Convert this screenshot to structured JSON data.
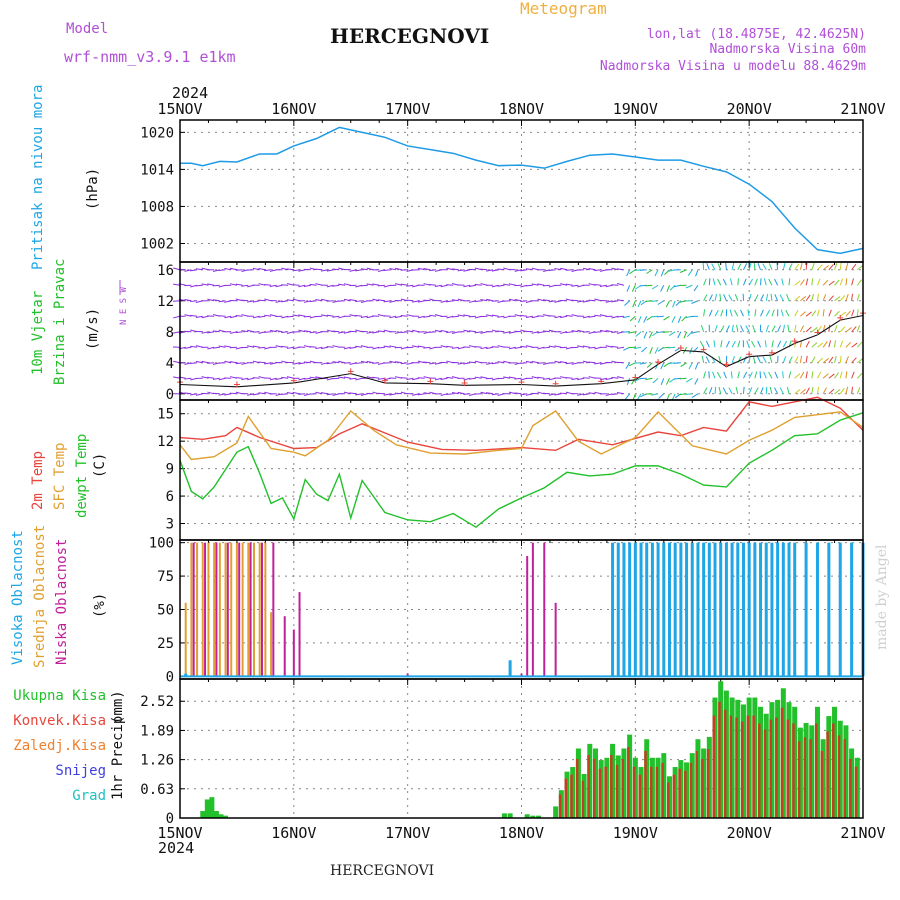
{
  "header": {
    "model_label": "Model",
    "model_value": "wrf-nmm_v3.9.1 e1km",
    "station": "HERCEGNOVI",
    "meteogram": "Meteogram",
    "lonlat": "lon,lat (18.4875E, 42.4625N)",
    "alt": "Nadmorska Visina 60m",
    "alt_model": "Nadmorska Visina u modelu 88.4629m",
    "footer_station": "HERCEGNOVI",
    "credit": "made by Angel"
  },
  "time_axis": {
    "year": "2024",
    "ticks": [
      "15NOV",
      "16NOV",
      "17NOV",
      "18NOV",
      "19NOV",
      "20NOV",
      "21NOV"
    ]
  },
  "colors": {
    "pressure": "#1e9be6",
    "temp2m": "#e8453c",
    "sfc": "#e0a030",
    "dewpt": "#22c02a",
    "cloud_high": "#1ea6e6",
    "cloud_mid": "#e0a030",
    "cloud_low": "#c0209a",
    "precip": "#22c02a",
    "precip_conv": "#c04020",
    "wind_calm": "#8a2be2"
  },
  "chart_data": [
    {
      "type": "line",
      "panel": "pressure",
      "ylabel_main": "Pritisak na nivou mora",
      "ylabel_unit": "(hPa)",
      "ylim": [
        999,
        1022
      ],
      "yticks": [
        1002,
        1008,
        1014,
        1020
      ],
      "grid": true,
      "series": [
        {
          "x": [
            0,
            0.1,
            0.2,
            0.35,
            0.5,
            0.7,
            0.85,
            1.0,
            1.2,
            1.4,
            1.6,
            1.8,
            2.0,
            2.2,
            2.4,
            2.6,
            2.8,
            3.0,
            3.2,
            3.4,
            3.6,
            3.8,
            4.0,
            4.2,
            4.4,
            4.6,
            4.8,
            5.0,
            5.2,
            5.4,
            5.6,
            5.8,
            6.0
          ],
          "values": [
            1015,
            1015,
            1014.6,
            1015.3,
            1015.2,
            1016.5,
            1016.5,
            1017.8,
            1019,
            1020.8,
            1020,
            1019.2,
            1017.8,
            1017.2,
            1016.6,
            1015.5,
            1014.6,
            1014.7,
            1014.2,
            1015.3,
            1016.3,
            1016.5,
            1016,
            1015.5,
            1015.5,
            1014.5,
            1013.6,
            1011.6,
            1008.8,
            1004.5,
            1001,
            1000.4,
            1001.2
          ]
        }
      ]
    },
    {
      "type": "line",
      "panel": "wind",
      "ylabel_main": "10m Vjetar",
      "ylabel_sub": "Brzina i Pravac",
      "ylabel_unit": "(m/s)",
      "compass": "N E S W",
      "ylim": [
        -0.8,
        17
      ],
      "yticks": [
        0,
        4,
        8,
        12,
        16
      ],
      "grid": true,
      "series": [
        {
          "name": "",
          "x": [
            0,
            0.5,
            1.0,
            1.5,
            1.8,
            2.2,
            2.5,
            3.0,
            3.3,
            3.7,
            4.0,
            4.2,
            4.4,
            4.6,
            4.8,
            5.0,
            5.2,
            5.4,
            5.6,
            5.8,
            6.0
          ],
          "values": [
            1.2,
            0.9,
            1.4,
            2.6,
            1.4,
            1.3,
            1.1,
            1.2,
            1.0,
            1.3,
            1.8,
            3.8,
            5.6,
            5.4,
            3.5,
            4.8,
            5.0,
            6.5,
            7.6,
            9.5,
            10.1
          ]
        }
      ]
    },
    {
      "type": "line",
      "panel": "temperature",
      "ylabel_main": "2m Temp",
      "ylabel_sub": "SFC Temp",
      "ylabel_sub2": "dewpt Temp",
      "ylabel_unit": "(C)",
      "ylim": [
        1.2,
        16.5
      ],
      "yticks": [
        3,
        6,
        9,
        12,
        15
      ],
      "grid": true,
      "series": [
        {
          "name": "2m Temp",
          "x": [
            0,
            0.2,
            0.4,
            0.5,
            0.7,
            1.0,
            1.2,
            1.4,
            1.6,
            2.0,
            2.3,
            2.6,
            3.0,
            3.3,
            3.5,
            3.8,
            4.0,
            4.2,
            4.4,
            4.6,
            4.8,
            5.0,
            5.2,
            5.4,
            5.6,
            5.8,
            6.0
          ],
          "values": [
            12.4,
            12.2,
            12.6,
            13.5,
            12.4,
            11.2,
            11.3,
            12.8,
            13.9,
            11.9,
            11.1,
            11.0,
            11.3,
            11.0,
            12.2,
            11.6,
            12.3,
            13.0,
            12.6,
            13.5,
            13.1,
            16.3,
            15.8,
            16.3,
            16.8,
            15.6,
            13.2
          ]
        },
        {
          "name": "SFC Temp",
          "x": [
            0,
            0.1,
            0.3,
            0.5,
            0.6,
            0.8,
            1.0,
            1.1,
            1.3,
            1.5,
            1.7,
            1.9,
            2.2,
            2.5,
            2.8,
            3.0,
            3.1,
            3.3,
            3.5,
            3.7,
            3.9,
            4.0,
            4.2,
            4.5,
            4.8,
            5.0,
            5.2,
            5.4,
            5.6,
            5.8,
            6.0
          ],
          "values": [
            11.6,
            10,
            10.3,
            11.8,
            14.7,
            11.2,
            10.8,
            10.4,
            12.1,
            15.3,
            13.2,
            11.6,
            10.7,
            10.6,
            11.0,
            11.2,
            13.7,
            15.3,
            12.0,
            10.6,
            11.8,
            12.4,
            15.2,
            11.5,
            10.6,
            12.1,
            13.2,
            14.6,
            14.9,
            15.2,
            13.5
          ]
        },
        {
          "name": "dewpt Temp",
          "x": [
            0,
            0.1,
            0.2,
            0.3,
            0.4,
            0.5,
            0.6,
            0.7,
            0.8,
            0.9,
            1.0,
            1.1,
            1.2,
            1.3,
            1.4,
            1.5,
            1.6,
            1.8,
            2.0,
            2.2,
            2.4,
            2.6,
            2.8,
            3.0,
            3.2,
            3.4,
            3.6,
            3.8,
            4.0,
            4.2,
            4.4,
            4.6,
            4.8,
            5.0,
            5.2,
            5.4,
            5.6,
            5.8,
            6.0
          ],
          "values": [
            9.9,
            6.5,
            5.7,
            7.0,
            8.9,
            10.8,
            11.4,
            8.5,
            5.2,
            5.8,
            3.5,
            7.8,
            6.2,
            5.5,
            8.4,
            3.6,
            7.7,
            4.2,
            3.4,
            3.2,
            4.1,
            2.6,
            4.6,
            5.8,
            6.9,
            8.6,
            8.2,
            8.4,
            9.3,
            9.3,
            8.4,
            7.2,
            7.0,
            9.6,
            11.0,
            12.6,
            12.8,
            14.3,
            15.1
          ]
        }
      ]
    },
    {
      "type": "bar",
      "panel": "cloud",
      "ylabel_main": "Visoka Oblacnost",
      "ylabel_sub": "Srednja Oblacnost",
      "ylabel_sub2": "Niska Oblacnost",
      "ylabel_unit": "(%)",
      "ylim": [
        -2,
        102
      ],
      "yticks": [
        0,
        25,
        50,
        75,
        100
      ],
      "grid": true,
      "series": [
        {
          "name": "Srednja Oblacnost",
          "x": [
            0.05,
            0.1,
            0.15,
            0.2,
            0.25,
            0.3,
            0.35,
            0.4,
            0.45,
            0.5,
            0.55,
            0.6,
            0.65,
            0.7,
            0.75,
            0.8,
            5.4,
            5.5,
            5.6,
            5.7,
            5.8,
            5.9
          ],
          "values": [
            55,
            100,
            100,
            100,
            100,
            100,
            100,
            100,
            100,
            100,
            100,
            100,
            100,
            100,
            100,
            48,
            100,
            100,
            100,
            100,
            100,
            100
          ]
        },
        {
          "name": "Niska Oblacnost",
          "x": [
            0.12,
            0.22,
            0.32,
            0.42,
            0.52,
            0.62,
            0.72,
            0.82,
            0.92,
            1.0,
            1.05,
            2.0,
            3.0,
            3.05,
            3.1,
            3.2,
            3.3,
            4.6,
            4.7,
            4.8,
            4.9,
            5.0,
            5.1,
            5.2,
            5.3
          ],
          "values": [
            100,
            100,
            100,
            100,
            100,
            100,
            100,
            100,
            45,
            35,
            63,
            2,
            2,
            90,
            100,
            100,
            55,
            80,
            90,
            85,
            100,
            83,
            80,
            85,
            90
          ]
        },
        {
          "name": "Visoka Oblacnost",
          "x": [
            0.05,
            2.9,
            3.8,
            3.85,
            3.9,
            3.95,
            4.0,
            4.05,
            4.1,
            4.15,
            4.2,
            4.25,
            4.3,
            4.35,
            4.4,
            4.45,
            4.5,
            4.55,
            4.6,
            4.65,
            4.7,
            4.75,
            4.8,
            4.85,
            4.9,
            4.95,
            5.0,
            5.05,
            5.1,
            5.15,
            5.2,
            5.25,
            5.3,
            5.35,
            5.4,
            5.5,
            5.6,
            5.7,
            5.8,
            5.9,
            6.0
          ],
          "values": [
            2,
            12,
            100,
            100,
            100,
            100,
            100,
            100,
            100,
            100,
            100,
            100,
            100,
            100,
            100,
            100,
            100,
            100,
            100,
            100,
            100,
            100,
            100,
            100,
            100,
            100,
            100,
            100,
            100,
            100,
            100,
            100,
            100,
            100,
            100,
            100,
            100,
            100,
            100,
            100,
            100
          ]
        }
      ]
    },
    {
      "type": "bar",
      "panel": "precip",
      "ylabel_main": "1hr Precip",
      "ylabel_unit": "(mm)",
      "legend": [
        "Ukupna Kisa",
        "Konvek.Kisa",
        "Zaledj.Kisa",
        "Snijeg",
        "Grad"
      ],
      "ylim": [
        0,
        3.0
      ],
      "yticks": [
        0,
        0.63,
        1.26,
        1.89,
        2.52
      ],
      "grid": true,
      "series": [
        {
          "name": "Ukupna Kisa",
          "x": [
            0.2,
            0.24,
            0.28,
            0.32,
            0.36,
            0.4,
            2.85,
            2.9,
            3.05,
            3.1,
            3.15,
            3.3,
            3.35,
            3.4,
            3.45,
            3.5,
            3.55,
            3.6,
            3.65,
            3.7,
            3.75,
            3.8,
            3.85,
            3.9,
            3.95,
            4.0,
            4.05,
            4.1,
            4.15,
            4.2,
            4.25,
            4.3,
            4.35,
            4.4,
            4.45,
            4.5,
            4.55,
            4.6,
            4.65,
            4.7,
            4.75,
            4.8,
            4.85,
            4.9,
            4.95,
            5.0,
            5.05,
            5.1,
            5.15,
            5.2,
            5.25,
            5.3,
            5.35,
            5.4,
            5.45,
            5.5,
            5.55,
            5.6,
            5.65,
            5.7,
            5.75,
            5.8,
            5.85,
            5.9,
            5.95
          ],
          "values": [
            0.15,
            0.4,
            0.45,
            0.15,
            0.08,
            0.05,
            0.1,
            0.1,
            0.08,
            0.05,
            0.05,
            0.25,
            0.6,
            1.0,
            1.1,
            1.5,
            0.95,
            1.6,
            1.5,
            1.25,
            1.3,
            1.6,
            1.35,
            1.5,
            1.8,
            1.3,
            1.1,
            1.7,
            1.3,
            1.3,
            1.4,
            0.9,
            1.1,
            1.25,
            1.2,
            1.4,
            1.7,
            1.5,
            1.75,
            2.6,
            2.95,
            2.75,
            2.6,
            2.55,
            2.45,
            2.6,
            2.6,
            2.4,
            2.25,
            2.5,
            2.55,
            2.8,
            2.5,
            2.4,
            1.95,
            2.05,
            2.0,
            2.4,
            1.7,
            2.2,
            2.4,
            2.1,
            2.0,
            1.5,
            1.3
          ]
        }
      ]
    }
  ]
}
